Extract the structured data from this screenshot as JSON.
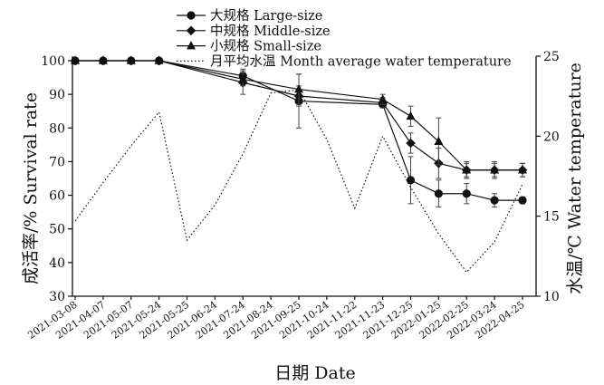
{
  "chart_data": {
    "type": "line",
    "xlabel": "日期 Date",
    "ylabel": "成活率/% Survival rate",
    "y2label": "水温/℃ Water temperature",
    "categories": [
      "2021-03-08",
      "2021-04-07",
      "2021-05-07",
      "2021-05-24",
      "2021-05-25",
      "2021-06-24",
      "2021-07-24",
      "2021-08-24",
      "2021-09-25",
      "2021-10-24",
      "2021-11-22",
      "2021-11-23",
      "2021-12-25",
      "2022-01-25",
      "2022-02-25",
      "2022-03-24",
      "2022-04-25"
    ],
    "ylim": [
      30,
      100
    ],
    "yticks": [
      30,
      40,
      50,
      60,
      70,
      80,
      90,
      100
    ],
    "y2lim": [
      10,
      25
    ],
    "y2ticks": [
      10,
      15,
      20,
      25
    ],
    "legend_position": "top-center",
    "series": [
      {
        "name": "大规格 Large-size",
        "marker": "circle",
        "axis": "left",
        "x": [
          0,
          1,
          2,
          3,
          6,
          8,
          11,
          12,
          13,
          14,
          15,
          16
        ],
        "values": [
          100,
          100,
          100,
          100,
          95.5,
          88,
          87,
          64.5,
          60.5,
          60.5,
          58.5,
          58.5
        ],
        "errors": [
          0,
          0,
          0,
          0,
          2,
          8,
          1,
          7,
          4,
          3,
          2,
          1
        ]
      },
      {
        "name": "中规格 Middle-size",
        "marker": "diamond",
        "axis": "left",
        "x": [
          0,
          1,
          2,
          3,
          6,
          8,
          11,
          12,
          13,
          14,
          15,
          16
        ],
        "values": [
          100,
          100,
          100,
          100,
          93.5,
          89.5,
          87.5,
          75.5,
          69.5,
          67.5,
          67.5,
          67.5
        ],
        "errors": [
          0,
          0,
          0,
          0,
          3.5,
          3,
          1.5,
          3,
          4.5,
          2,
          2,
          2
        ]
      },
      {
        "name": "小规格 Small-size",
        "marker": "triangle",
        "axis": "left",
        "x": [
          0,
          1,
          2,
          3,
          6,
          8,
          11,
          12,
          13,
          14,
          15,
          16
        ],
        "values": [
          100,
          100,
          100,
          100,
          94.5,
          91.5,
          88.5,
          83.5,
          76,
          67.5,
          67.5,
          67.5
        ],
        "errors": [
          0,
          0,
          0,
          0,
          2,
          4.5,
          1.5,
          3,
          7,
          2.5,
          2.5,
          2
        ]
      },
      {
        "name": "月平均水温 Month average water temperature",
        "style": "dotted",
        "axis": "right",
        "x": [
          0,
          1,
          2,
          3,
          4,
          5,
          6,
          7,
          8,
          9,
          10,
          11,
          12,
          13,
          14,
          15,
          16
        ],
        "values": [
          14.7,
          17.1,
          19.4,
          21.5,
          13.5,
          15.7,
          18.9,
          22.7,
          22.9,
          19.8,
          15.5,
          20.0,
          16.8,
          13.9,
          11.5,
          13.4,
          17.0
        ]
      }
    ]
  }
}
